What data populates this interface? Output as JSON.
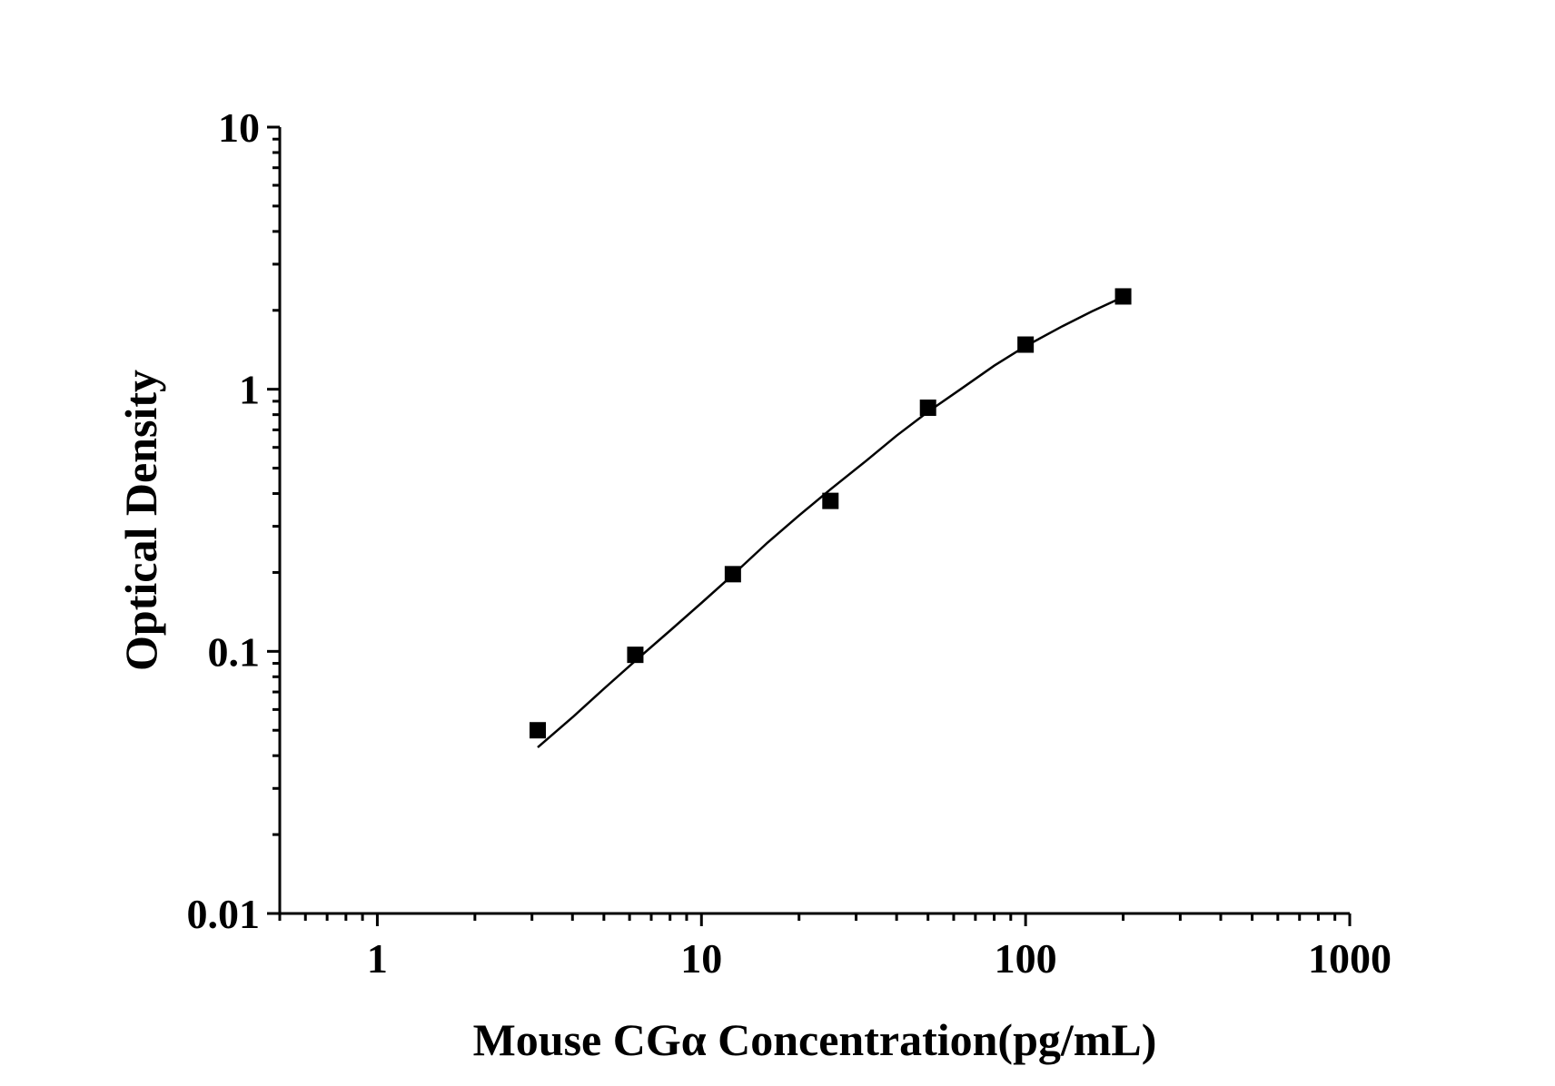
{
  "chart_data": {
    "type": "scatter",
    "title": "",
    "xlabel": "Mouse CGα Concentration(pg/mL)",
    "ylabel": "Optical Density",
    "x_scale": "log",
    "y_scale": "log",
    "xlim": [
      0.5,
      1000
    ],
    "ylim": [
      0.01,
      10
    ],
    "x_ticks": [
      "1",
      "10",
      "100",
      "1000"
    ],
    "x_tick_values": [
      1,
      10,
      100,
      1000
    ],
    "y_ticks": [
      "0.01",
      "0.1",
      "1",
      "10"
    ],
    "y_tick_values": [
      0.01,
      0.1,
      1,
      10
    ],
    "grid": false,
    "legend": "none",
    "marker": "square",
    "color": "#000000",
    "series": [
      {
        "x": [
          3.125,
          6.25,
          12.5,
          25,
          50,
          100,
          200
        ],
        "y": [
          0.05,
          0.097,
          0.197,
          0.375,
          0.85,
          1.48,
          2.26
        ]
      }
    ],
    "fit_curve": {
      "x": [
        3.125,
        4,
        5,
        6.25,
        8,
        10,
        12.5,
        16,
        20,
        25,
        32,
        40,
        50,
        63,
        80,
        100,
        130,
        160,
        200
      ],
      "y": [
        0.043,
        0.056,
        0.072,
        0.092,
        0.12,
        0.153,
        0.196,
        0.26,
        0.33,
        0.415,
        0.53,
        0.665,
        0.82,
        1.0,
        1.23,
        1.46,
        1.74,
        1.98,
        2.25
      ]
    }
  }
}
